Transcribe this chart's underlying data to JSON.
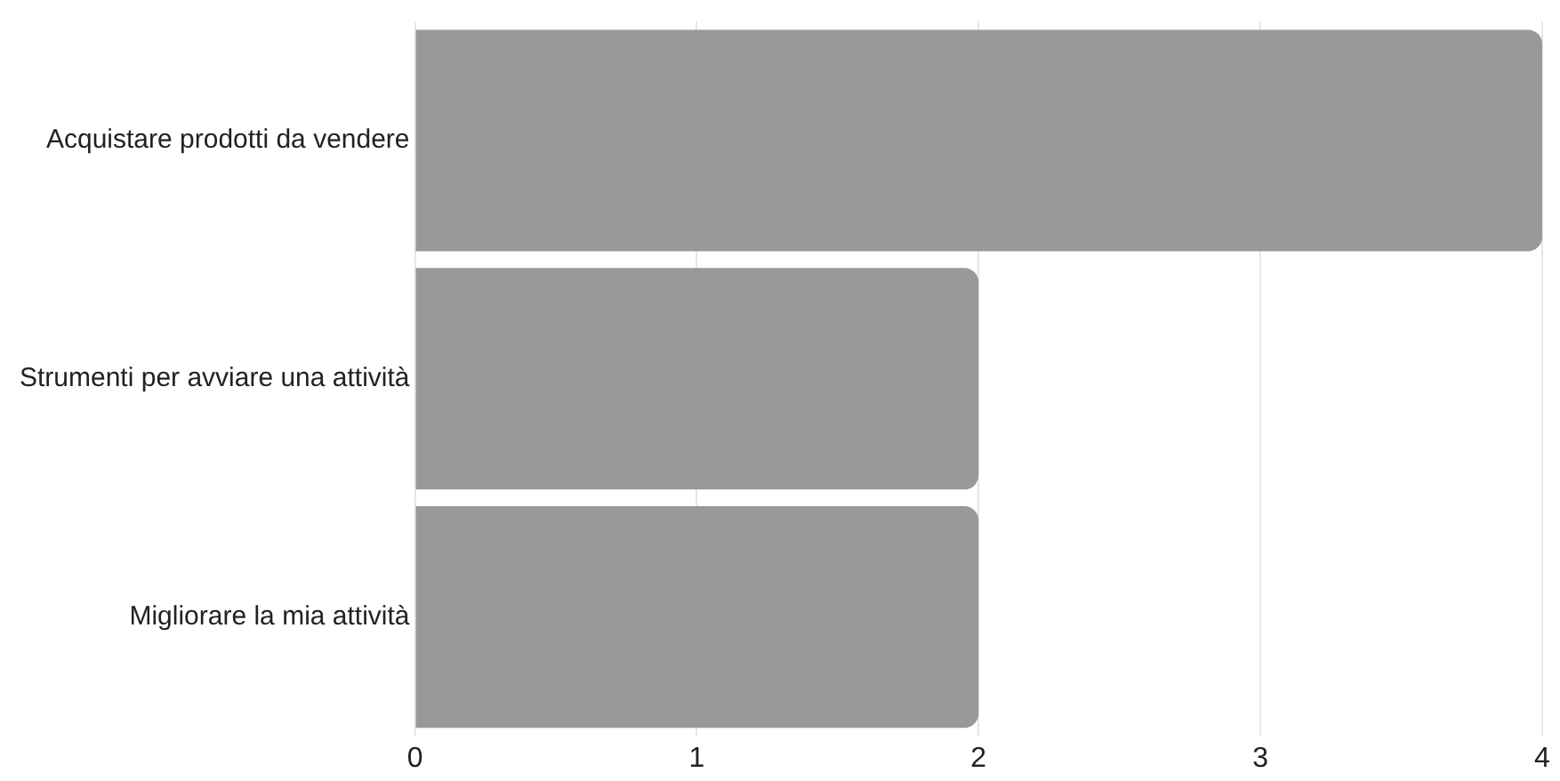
{
  "chart_data": {
    "type": "bar",
    "orientation": "horizontal",
    "categories": [
      "Acquistare prodotti da vendere",
      "Strumenti per avviare una attività",
      "Migliorare la mia attività"
    ],
    "values": [
      4,
      2,
      2
    ],
    "color": "#999999",
    "xlim": [
      0,
      4
    ],
    "xticks": [
      0,
      1,
      2,
      3,
      4
    ],
    "grid": "x",
    "legend": false
  }
}
